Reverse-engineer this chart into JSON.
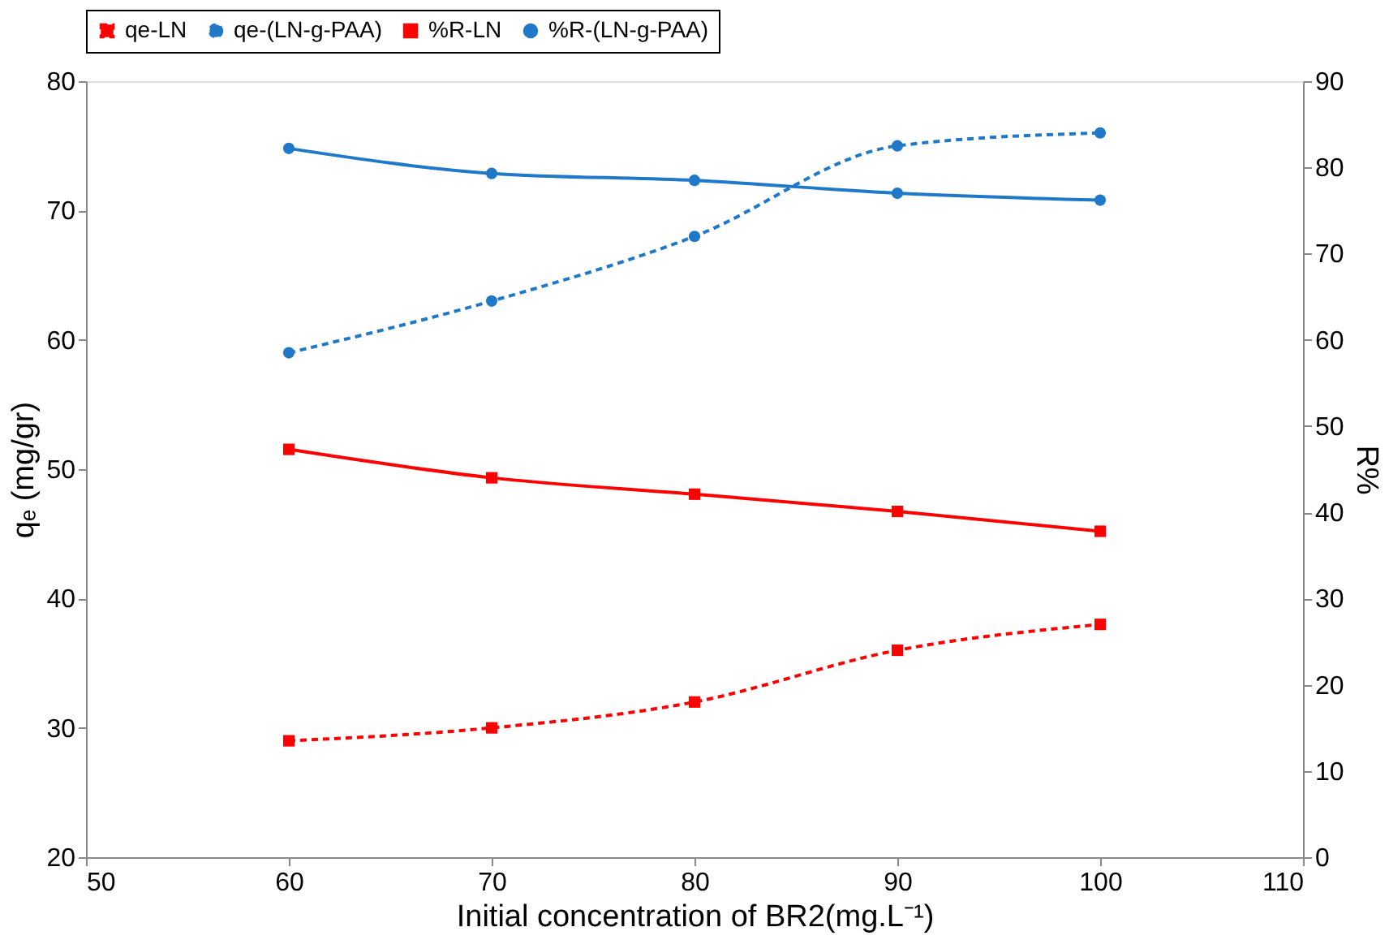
{
  "chart_data": {
    "type": "line",
    "xlabel": "Initial concentration of BR2(mg.L⁻¹)",
    "ylabel": "qₑ (mg/gr)",
    "y2label": "R%",
    "x": [
      60,
      70,
      80,
      90,
      100
    ],
    "xlim": [
      50,
      110
    ],
    "xticks": [
      50,
      60,
      70,
      80,
      90,
      100,
      110
    ],
    "ylim": [
      20,
      80
    ],
    "yticks": [
      20,
      30,
      40,
      50,
      60,
      70,
      80
    ],
    "y2lim": [
      0,
      90
    ],
    "y2ticks": [
      0,
      10,
      20,
      30,
      40,
      50,
      60,
      70,
      80,
      90
    ],
    "grid": false,
    "legend": "top",
    "series": [
      {
        "name": "qe-LN",
        "color": "#ff0000",
        "values": [
          29,
          30,
          32,
          36,
          38
        ],
        "marker": "square",
        "line_style": "dashed"
      },
      {
        "name": "qe-(LN-g-PAA)",
        "color": "#1f78c8",
        "values": [
          59,
          63,
          68,
          75,
          76
        ],
        "marker": "circle",
        "line_style": "dashed"
      },
      {
        "name": "%R-LN",
        "color": "#ff0000",
        "values": [
          47.3,
          44,
          42.1,
          40.1,
          37.8
        ],
        "marker": "square",
        "line_style": "solid",
        "axis": "y2"
      },
      {
        "name": "%R-(LN-g-PAA)",
        "color": "#1f78c8",
        "values": [
          82.2,
          79.3,
          78.5,
          77,
          76.2
        ],
        "marker": "circle",
        "line_style": "solid",
        "axis": "y2"
      }
    ]
  }
}
